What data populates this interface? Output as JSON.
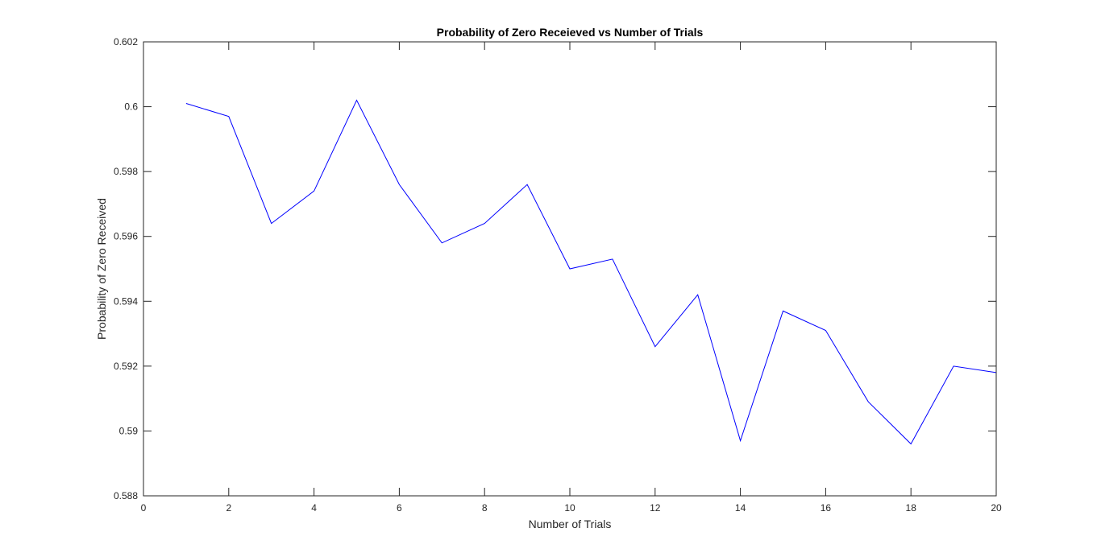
{
  "chart_data": {
    "type": "line",
    "title": "Probability of Zero Receieved vs Number of Trials",
    "xlabel": "Number of Trials",
    "ylabel": "Probability of Zero Received",
    "xlim": [
      0,
      20
    ],
    "ylim": [
      0.588,
      0.602
    ],
    "xticks": [
      0,
      2,
      4,
      6,
      8,
      10,
      12,
      14,
      16,
      18,
      20
    ],
    "xtick_labels": [
      "0",
      "2",
      "4",
      "6",
      "8",
      "10",
      "12",
      "14",
      "16",
      "18",
      "20"
    ],
    "yticks": [
      0.588,
      0.59,
      0.592,
      0.594,
      0.596,
      0.598,
      0.6,
      0.602
    ],
    "ytick_labels": [
      "0.588",
      "0.59",
      "0.592",
      "0.594",
      "0.596",
      "0.598",
      "0.6",
      "0.602"
    ],
    "grid": false,
    "legend": "none",
    "series": [
      {
        "color": "#0000ff",
        "x": [
          1,
          2,
          3,
          4,
          5,
          6,
          7,
          8,
          9,
          10,
          11,
          12,
          13,
          14,
          15,
          16,
          17,
          18,
          19,
          20
        ],
        "y": [
          0.6001,
          0.5997,
          0.5964,
          0.5974,
          0.6002,
          0.5976,
          0.5958,
          0.5964,
          0.5976,
          0.595,
          0.5953,
          0.5926,
          0.5942,
          0.5897,
          0.5937,
          0.5931,
          0.5909,
          0.5896,
          0.592,
          0.5918
        ]
      }
    ]
  }
}
